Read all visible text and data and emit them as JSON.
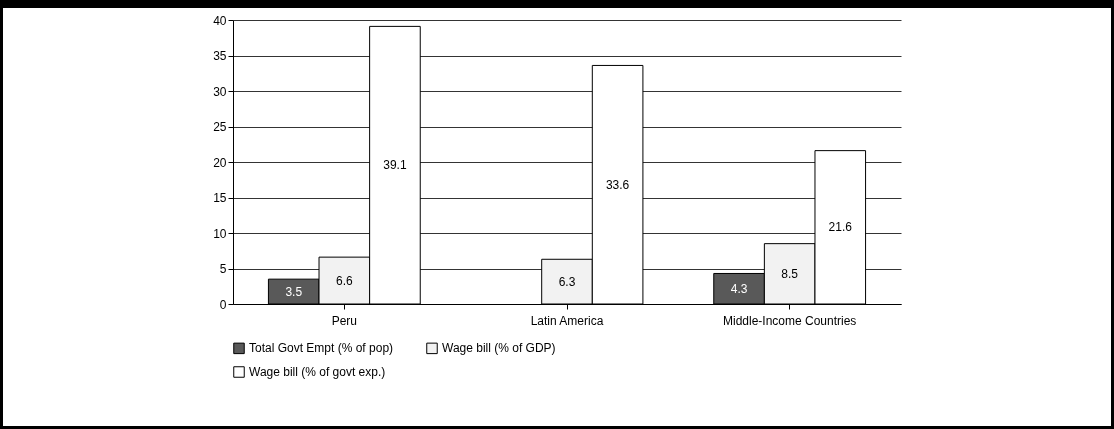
{
  "chart_data": {
    "type": "bar",
    "categories": [
      "Peru",
      "Latin America",
      "Middle-Income Countries"
    ],
    "series": [
      {
        "name": "Total Govt Empt (% of pop)",
        "color": "#595959",
        "values": [
          3.5,
          null,
          4.3
        ]
      },
      {
        "name": "Wage bill (% of GDP)",
        "color": "#f2f2f2",
        "values": [
          6.6,
          6.3,
          8.5
        ]
      },
      {
        "name": "Wage bill (% of govt exp.)",
        "color": "#ffffff",
        "values": [
          39.1,
          33.6,
          21.6
        ]
      }
    ],
    "ylim": [
      0,
      40
    ],
    "yticks": [
      0,
      5,
      10,
      15,
      20,
      25,
      30,
      35,
      40
    ],
    "grid": "y",
    "legend": "bottom",
    "data_labels": true
  }
}
